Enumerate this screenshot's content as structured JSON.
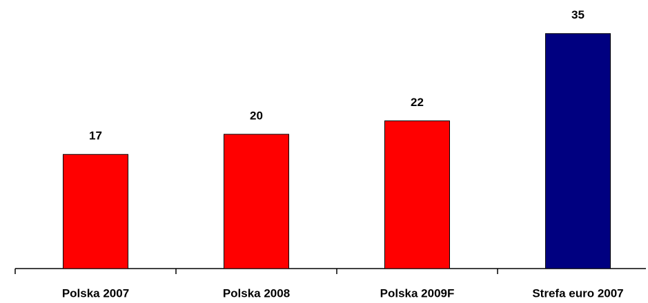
{
  "chart_data": {
    "type": "bar",
    "categories": [
      "Polska 2007",
      "Polska 2008",
      "Polska 2009F",
      "Strefa euro 2007"
    ],
    "values": [
      17,
      20,
      22,
      35
    ],
    "colors": [
      "#ff0000",
      "#ff0000",
      "#ff0000",
      "#000080"
    ],
    "ylim": [
      0,
      40
    ]
  }
}
